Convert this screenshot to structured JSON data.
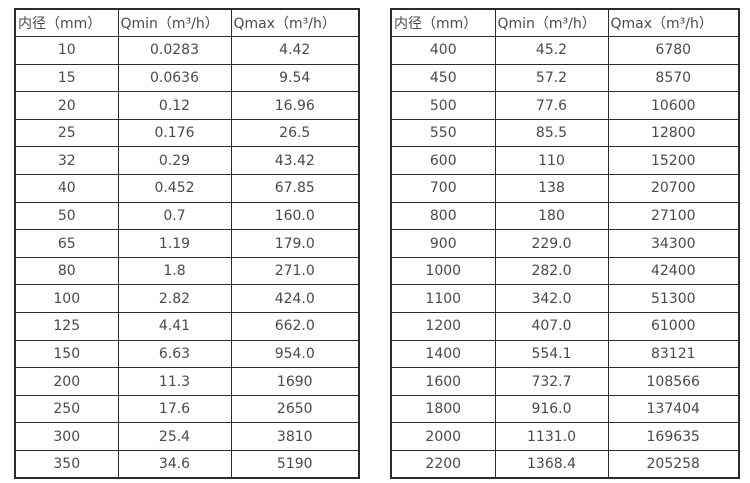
{
  "colors": {
    "background": "#ffffff",
    "border": "#2b2b2b",
    "text": "#4a4a4a"
  },
  "left_table": {
    "headers": [
      "内径（mm）",
      "Qmin（m³/h）",
      "Qmax（m³/h）"
    ],
    "rows": [
      [
        "10",
        "0.0283",
        "4.42"
      ],
      [
        "15",
        "0.0636",
        "9.54"
      ],
      [
        "20",
        "0.12",
        "16.96"
      ],
      [
        "25",
        "0.176",
        "26.5"
      ],
      [
        "32",
        "0.29",
        "43.42"
      ],
      [
        "40",
        "0.452",
        "67.85"
      ],
      [
        "50",
        "0.7",
        "160.0"
      ],
      [
        "65",
        "1.19",
        "179.0"
      ],
      [
        "80",
        "1.8",
        "271.0"
      ],
      [
        "100",
        "2.82",
        "424.0"
      ],
      [
        "125",
        "4.41",
        "662.0"
      ],
      [
        "150",
        "6.63",
        "954.0"
      ],
      [
        "200",
        "11.3",
        "1690"
      ],
      [
        "250",
        "17.6",
        "2650"
      ],
      [
        "300",
        "25.4",
        "3810"
      ],
      [
        "350",
        "34.6",
        "5190"
      ]
    ]
  },
  "right_table": {
    "headers": [
      "内径（mm）",
      "Qmin（m³/h）",
      "Qmax（m³/h）"
    ],
    "rows": [
      [
        "400",
        "45.2",
        "6780"
      ],
      [
        "450",
        "57.2",
        "8570"
      ],
      [
        "500",
        "77.6",
        "10600"
      ],
      [
        "550",
        "85.5",
        "12800"
      ],
      [
        "600",
        "110",
        "15200"
      ],
      [
        "700",
        "138",
        "20700"
      ],
      [
        "800",
        "180",
        "27100"
      ],
      [
        "900",
        "229.0",
        "34300"
      ],
      [
        "1000",
        "282.0",
        "42400"
      ],
      [
        "1100",
        "342.0",
        "51300"
      ],
      [
        "1200",
        "407.0",
        "61000"
      ],
      [
        "1400",
        "554.1",
        "83121"
      ],
      [
        "1600",
        "732.7",
        "108566"
      ],
      [
        "1800",
        "916.0",
        "137404"
      ],
      [
        "2000",
        "1131.0",
        "169635"
      ],
      [
        "2200",
        "1368.4",
        "205258"
      ]
    ]
  }
}
